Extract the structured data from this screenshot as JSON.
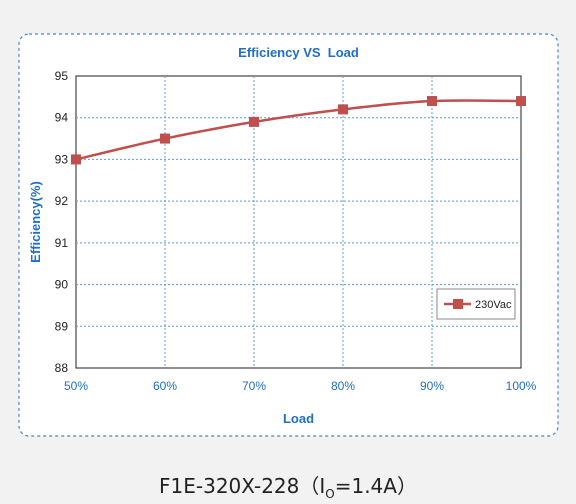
{
  "chart_data": {
    "type": "line",
    "title": "Efficiency VS  Load",
    "xlabel": "Load",
    "ylabel": "Efficiency(%)",
    "categories": [
      "50%",
      "60%",
      "70%",
      "80%",
      "90%",
      "100%"
    ],
    "ylim": [
      88,
      95
    ],
    "yticks": [
      88,
      89,
      90,
      91,
      92,
      93,
      94,
      95
    ],
    "grid": true,
    "legend_position": "right",
    "series": [
      {
        "name": "230Vac",
        "values": [
          93.0,
          93.5,
          93.9,
          94.2,
          94.4,
          94.4
        ],
        "color": "#c0504d",
        "marker": "square"
      }
    ]
  },
  "caption": {
    "prefix": "F1E-320X-228（I",
    "subscript": "O",
    "suffix": "=1.4A）"
  },
  "colors": {
    "accent": "#1f6fc5",
    "frame_border": "#4a86c5",
    "grid": "#5b9bd5",
    "series": "#c0504d"
  }
}
